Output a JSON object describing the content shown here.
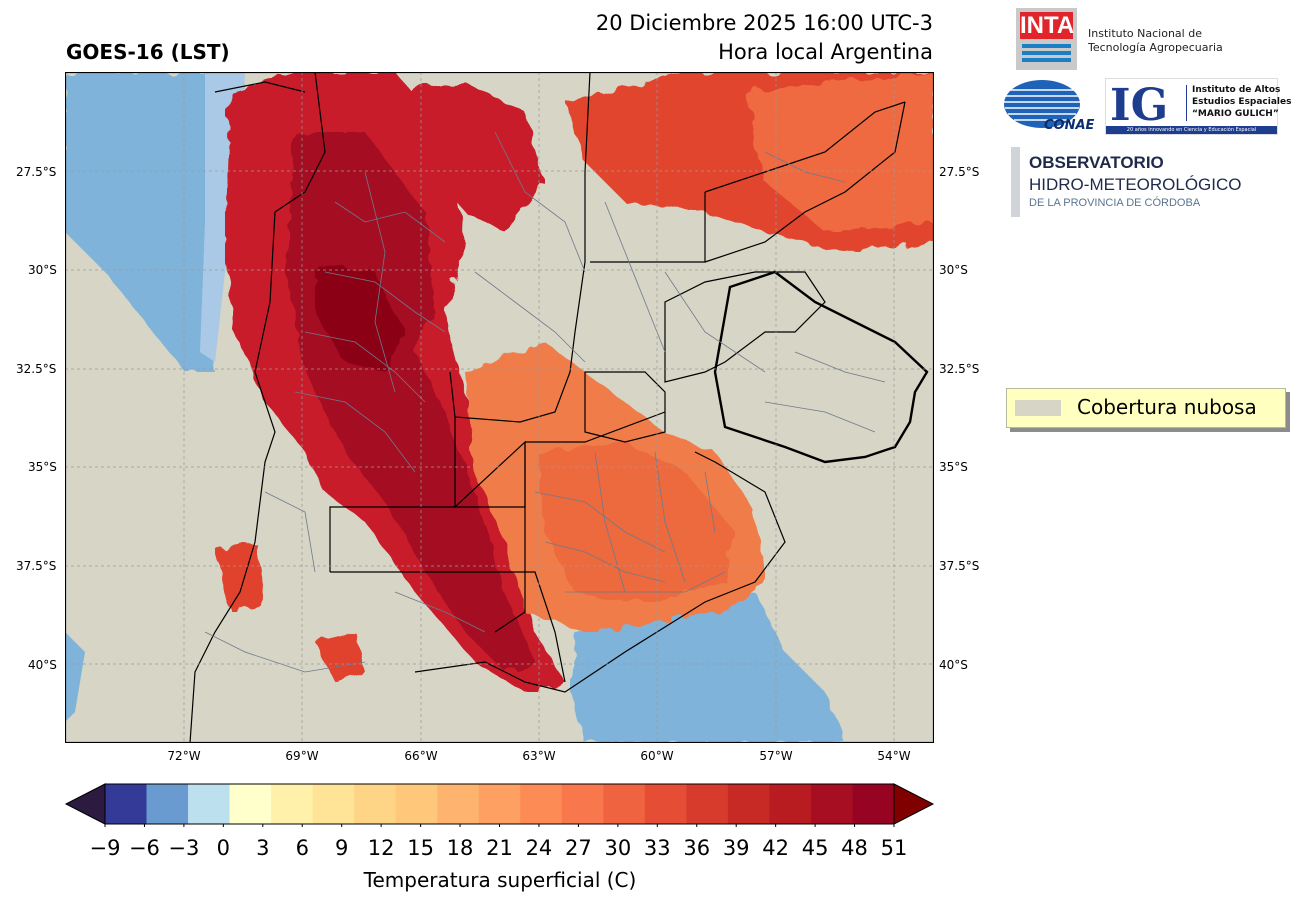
{
  "header": {
    "title": "GOES-16 (LST)",
    "datetime": "20 Diciembre 2025 16:00 UTC-3",
    "local_time": "Hora local Argentina"
  },
  "map": {
    "lat_labels": [
      "27.5°S",
      "30°S",
      "32.5°S",
      "35°S",
      "37.5°S",
      "40°S"
    ],
    "lon_labels": [
      "72°W",
      "69°W",
      "66°W",
      "63°W",
      "60°W",
      "57°W",
      "54°W"
    ],
    "colors": {
      "cloud": "#d6d5c6",
      "ocean": "#7fb3d9",
      "cold": "#a9c9e6",
      "warm": "#f07d4a",
      "hot": "#c81e2c",
      "hottest": "#8c0015"
    }
  },
  "legend": {
    "label": "Cobertura nubosa",
    "color": "#d6d5c6"
  },
  "colorbar": {
    "title": "Temperatura superficial (C)",
    "ticks": [
      "−9",
      "−6",
      "−3",
      "0",
      "3",
      "6",
      "9",
      "12",
      "15",
      "18",
      "21",
      "24",
      "27",
      "30",
      "33",
      "36",
      "39",
      "42",
      "45",
      "48",
      "51"
    ],
    "under_color": "#2d1a40",
    "over_color": "#800000",
    "colors": [
      "#333a97",
      "#6a9bd0",
      "#bde0ee",
      "#ffffcc",
      "#fff1aa",
      "#ffe497",
      "#fed587",
      "#fec77a",
      "#feb46e",
      "#fea062",
      "#fc8b56",
      "#f8774c",
      "#f06340",
      "#e54e35",
      "#d73b2c",
      "#c72a25",
      "#b81b20",
      "#a80e22",
      "#960323"
    ]
  },
  "logos": {
    "inta": {
      "mark": "INTA",
      "name_line1": "Instituto Nacional de",
      "name_line2": "Tecnología Agropecuaria"
    },
    "conae": {
      "mark": "CONAE"
    },
    "ig": {
      "mark": "IG",
      "line1": "Instituto de Altos",
      "line2": "Estudios Espaciales",
      "line3": "“MARIO GULICH”",
      "tagline": "20 años innovando en Ciencia y Educación Espacial"
    },
    "ohm": {
      "line1": "OBSERVATORIO",
      "line2": "HIDRO-METEOROLÓGICO",
      "line3": "DE LA PROVINCIA DE CÓRDOBA"
    }
  }
}
